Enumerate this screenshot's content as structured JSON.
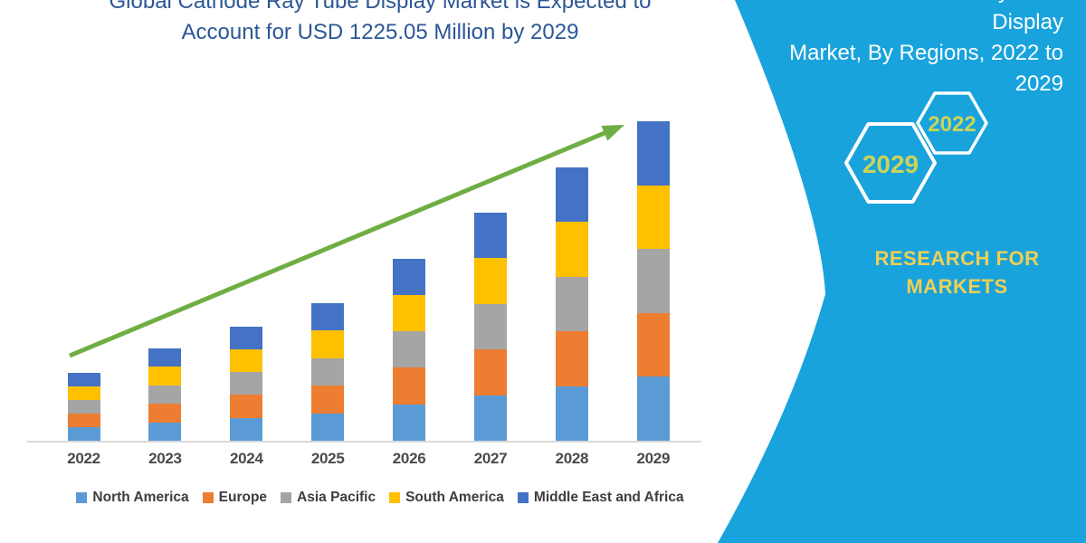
{
  "header": {
    "title_lines": [
      "Global Cathode Ray Tube Display Market is Expected to",
      "Account for USD 1225.05 Million by 2029"
    ],
    "title_color": "#2B5797"
  },
  "panel": {
    "bg_color": "#18A3DC",
    "title_lines": [
      "Global Cathode Ray Tube Display",
      "Market, By Regions, 2022 to",
      "2029"
    ],
    "hexagons": [
      {
        "label": "2022"
      },
      {
        "label": "2029"
      }
    ],
    "hex_label_color": "#CBD35B",
    "hex_outline_color": "#ffffff",
    "brand": "RESEARCH FOR MARKETS",
    "brand_color": "#F0CF55"
  },
  "chart_data": {
    "type": "bar",
    "stacked": true,
    "title": "Global Cathode Ray Tube Display Market is Expected to Account for USD 1225.05 Million by 2029",
    "categories": [
      "2022",
      "2023",
      "2024",
      "2025",
      "2026",
      "2027",
      "2028",
      "2029"
    ],
    "series": [
      {
        "name": "North America",
        "color": "#5B9BD5",
        "values": [
          52,
          71,
          88,
          106,
          140,
          175,
          210,
          245.01
        ]
      },
      {
        "name": "Europe",
        "color": "#ED7D31",
        "values": [
          52,
          71,
          88,
          106,
          140,
          175,
          210,
          245.01
        ]
      },
      {
        "name": "Asia Pacific",
        "color": "#A5A5A5",
        "values": [
          52,
          71,
          88,
          106,
          140,
          175,
          210,
          245.01
        ]
      },
      {
        "name": "South America",
        "color": "#FFC000",
        "values": [
          52,
          71,
          88,
          106,
          140,
          175,
          210,
          245.01
        ]
      },
      {
        "name": "Middle East and Africa",
        "color": "#4472C4",
        "values": [
          52,
          71,
          88,
          106,
          140,
          175,
          210,
          245.01
        ]
      }
    ],
    "totals": [
      260,
      355,
      440,
      530,
      700,
      875,
      1050,
      1225.05
    ],
    "units": "USD Million (estimated from bar heights; 2029 total labeled as 1225.05)",
    "xlabel": "",
    "ylabel": "",
    "y_axis_visible": false,
    "grid": false,
    "legend_position": "bottom",
    "trend_arrow": true,
    "trend_color": "#6FAE44",
    "axis_line_color": "#D9D9D9"
  }
}
